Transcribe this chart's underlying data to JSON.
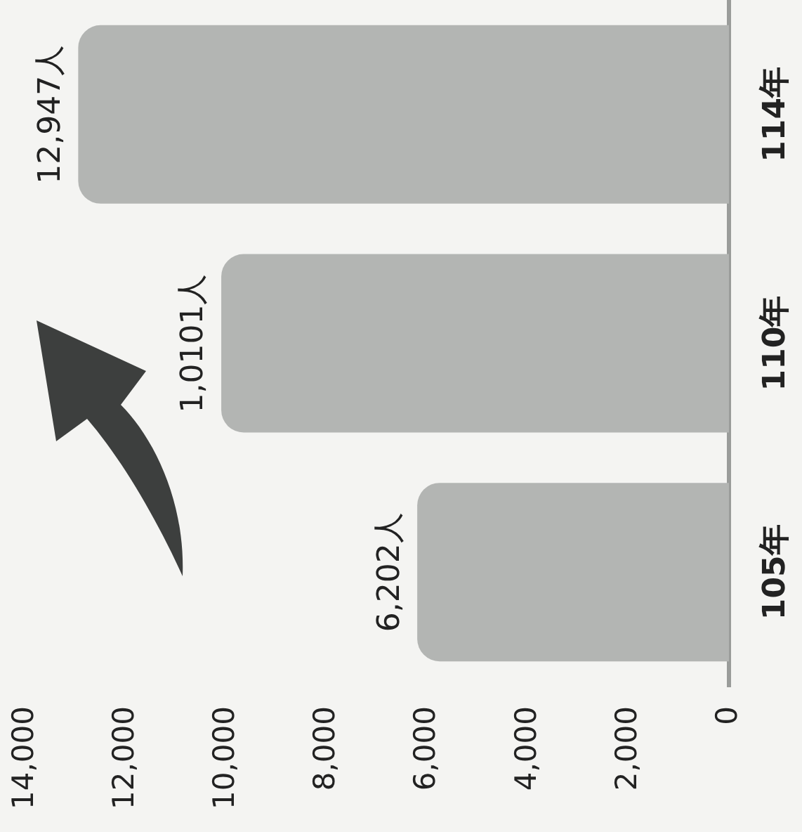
{
  "chart_data": {
    "type": "bar",
    "orientation": "horizontal",
    "categories": [
      "114年",
      "110年",
      "105年"
    ],
    "values": [
      12947,
      10101,
      6202
    ],
    "color": "#b3b5b3",
    "value_labels": [
      "12,947人",
      "1,0101人",
      "6,202人"
    ],
    "xlim": [
      14000,
      0
    ],
    "xticks": [
      {
        "value": 14000,
        "label": "14,000"
      },
      {
        "value": 12000,
        "label": "12,000"
      },
      {
        "value": 10000,
        "label": "10,000"
      },
      {
        "value": 8000,
        "label": "8,000"
      },
      {
        "value": 6000,
        "label": "6,000"
      },
      {
        "value": 4000,
        "label": "4,000"
      },
      {
        "value": 2000,
        "label": "2,000"
      },
      {
        "value": 0,
        "label": "0"
      }
    ],
    "grid": false,
    "legend": false
  }
}
